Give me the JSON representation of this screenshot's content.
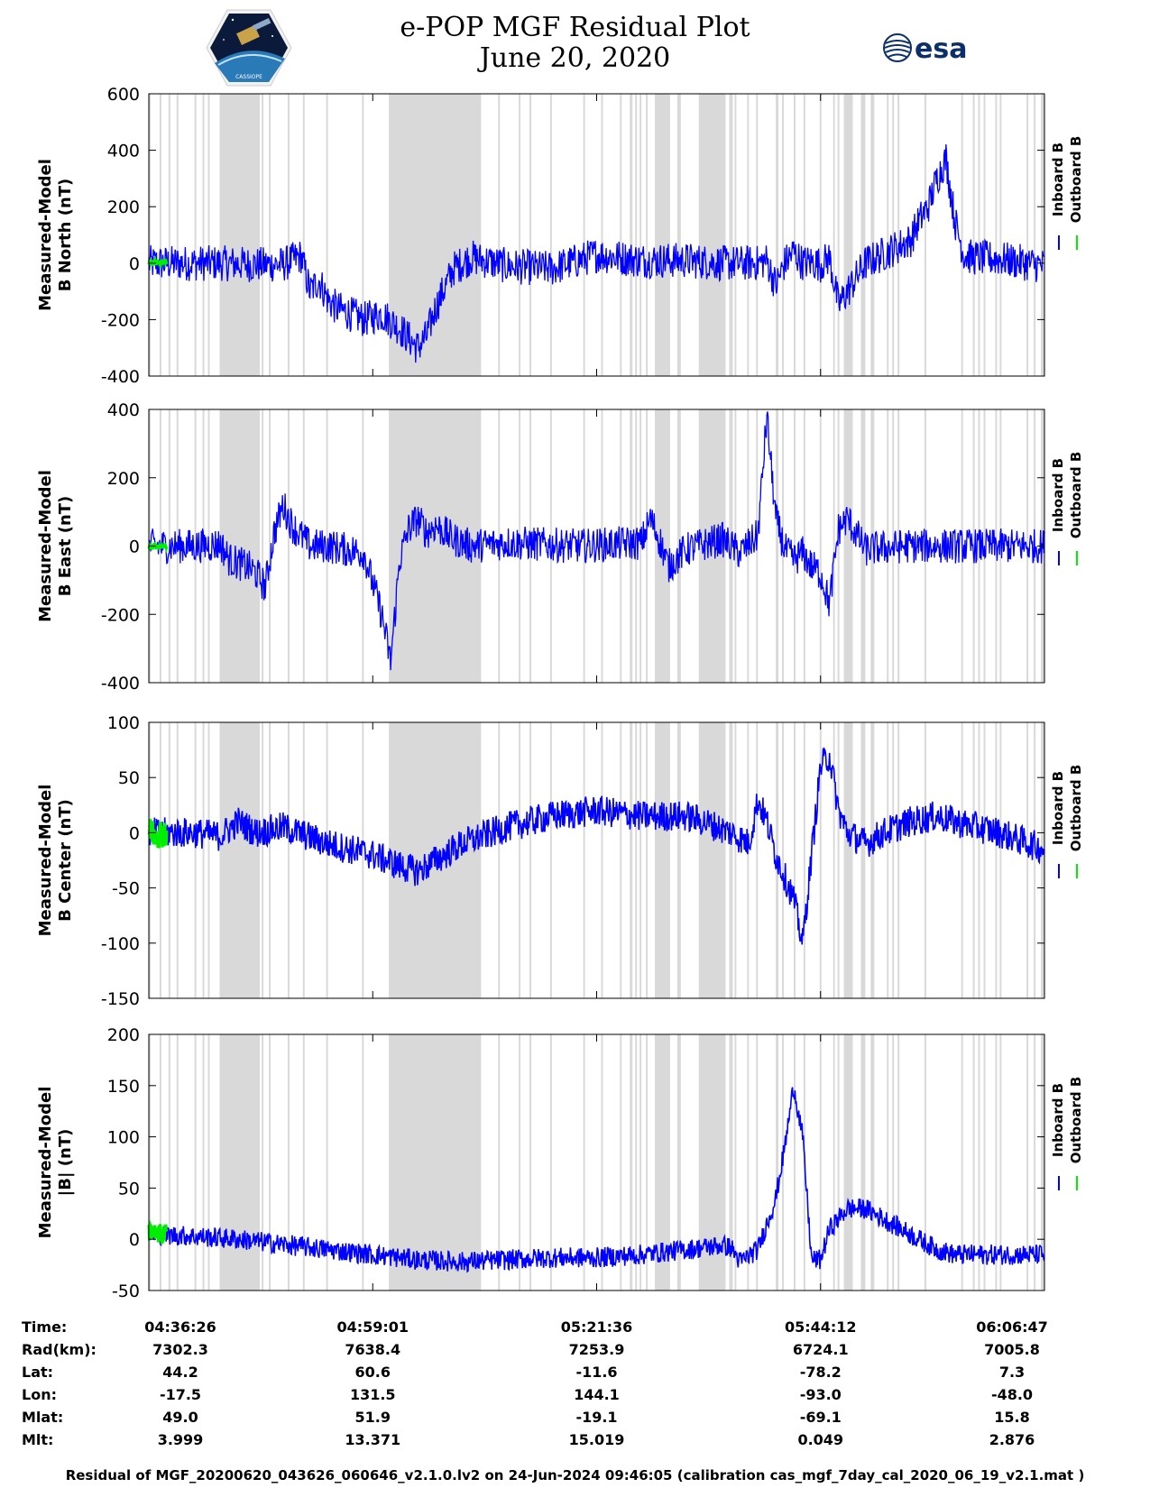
{
  "title": {
    "line1": "e-POP MGF Residual Plot",
    "line2": "June 20, 2020"
  },
  "logos": {
    "left": "cassiope-mission-logo",
    "right_text": "esa"
  },
  "chart_data": [
    {
      "type": "line",
      "panel": "north",
      "ylabel_line1": "Measured-Model",
      "ylabel_line2": "B North (nT)",
      "ylim": [
        -400,
        600
      ],
      "yticks": [
        -400,
        -200,
        0,
        200,
        400,
        600
      ],
      "legend": [
        "Inboard B",
        "Outboard B"
      ],
      "series": [
        {
          "name": "Inboard B",
          "color": "#0000ff",
          "x": [
            0,
            4,
            8,
            12,
            15,
            17,
            18,
            19,
            20,
            21,
            24,
            26,
            28,
            30,
            31,
            32,
            33,
            34,
            36,
            40,
            45,
            50,
            55,
            60,
            64,
            68,
            69,
            70,
            71,
            72,
            73,
            74,
            75,
            76,
            77,
            80,
            85,
            86,
            87,
            88,
            89,
            90,
            91,
            92,
            95,
            100
          ],
          "y": [
            0,
            0,
            0,
            -5,
            -5,
            25,
            -100,
            -60,
            -130,
            -160,
            -200,
            -180,
            -230,
            -300,
            -260,
            -160,
            -90,
            -20,
            20,
            -10,
            -20,
            30,
            10,
            10,
            0,
            0,
            10,
            -80,
            0,
            40,
            0,
            5,
            -5,
            20,
            -150,
            0,
            80,
            150,
            200,
            300,
            370,
            150,
            30,
            20,
            15,
            -10
          ]
        }
      ],
      "outboard": {
        "name": "Outboard B",
        "color": "#00ee00",
        "x": [
          0,
          2
        ],
        "y": [
          0,
          5
        ]
      }
    },
    {
      "type": "line",
      "panel": "east",
      "ylabel_line1": "Measured-Model",
      "ylabel_line2": "B East (nT)",
      "ylim": [
        -400,
        400
      ],
      "yticks": [
        -400,
        -200,
        0,
        200,
        400
      ],
      "legend": [
        "Inboard B",
        "Outboard B"
      ],
      "series": [
        {
          "name": "Inboard B",
          "color": "#0000ff",
          "x": [
            0,
            5,
            8,
            9,
            10,
            11,
            12,
            13,
            14,
            15,
            16,
            17,
            18,
            19,
            20,
            24,
            26,
            27,
            28,
            29,
            30,
            31,
            32,
            34,
            36,
            40,
            48,
            55,
            56,
            57,
            58,
            60,
            64,
            66,
            68,
            69,
            70,
            71,
            72,
            73,
            74,
            75,
            76,
            77,
            78,
            80,
            82,
            83,
            84,
            85,
            86,
            87,
            88,
            90,
            95,
            100
          ],
          "y": [
            0,
            0,
            5,
            -40,
            -50,
            -60,
            -80,
            -120,
            40,
            120,
            60,
            30,
            0,
            0,
            0,
            -20,
            -200,
            -340,
            -40,
            50,
            80,
            40,
            60,
            20,
            0,
            10,
            0,
            10,
            80,
            20,
            -60,
            -10,
            20,
            -20,
            30,
            380,
            80,
            -10,
            -40,
            -20,
            -60,
            -80,
            -170,
            50,
            80,
            -10,
            -5,
            -5,
            0,
            0,
            0,
            0,
            0,
            0,
            0,
            0
          ]
        }
      ],
      "outboard": {
        "name": "Outboard B",
        "color": "#00ee00",
        "x": [
          0,
          2
        ],
        "y": [
          0,
          0
        ]
      }
    },
    {
      "type": "line",
      "panel": "center",
      "ylabel_line1": "Measured-Model",
      "ylabel_line2": "B Center (nT)",
      "ylim": [
        -150,
        100
      ],
      "yticks": [
        -150,
        -100,
        -50,
        0,
        50,
        100
      ],
      "legend": [
        "Inboard B",
        "Outboard B"
      ],
      "series": [
        {
          "name": "Inboard B",
          "color": "#0000ff",
          "x": [
            0,
            5,
            8,
            10,
            12,
            15,
            20,
            25,
            28,
            30,
            32,
            35,
            40,
            45,
            50,
            55,
            58,
            60,
            62,
            65,
            67,
            68,
            69,
            70,
            72,
            73,
            74,
            75,
            76,
            77,
            78,
            80,
            82,
            85,
            88,
            90,
            95,
            100
          ],
          "y": [
            0,
            0,
            -3,
            10,
            0,
            5,
            -10,
            -20,
            -30,
            -35,
            -25,
            -10,
            5,
            15,
            20,
            15,
            15,
            15,
            10,
            0,
            -10,
            30,
            10,
            -20,
            -60,
            -100,
            -20,
            60,
            70,
            20,
            0,
            -10,
            0,
            10,
            15,
            10,
            0,
            -15
          ]
        }
      ],
      "noise_band": 14,
      "outboard": {
        "name": "Outboard B",
        "color": "#00ee00",
        "x": [
          0,
          2
        ],
        "y": [
          0,
          0
        ]
      }
    },
    {
      "type": "line",
      "panel": "magnitude",
      "ylabel_line1": "Measured-Model",
      "ylabel_line2": "|B| (nT)",
      "ylim": [
        -50,
        200
      ],
      "yticks": [
        -50,
        0,
        50,
        100,
        150,
        200
      ],
      "legend": [
        "Inboard B",
        "Outboard B"
      ],
      "series": [
        {
          "name": "Inboard B",
          "color": "#0000ff",
          "x": [
            0,
            5,
            10,
            15,
            20,
            25,
            30,
            35,
            40,
            45,
            50,
            55,
            60,
            62,
            64,
            65,
            66,
            68,
            70,
            71,
            72,
            73,
            74,
            75,
            76,
            78,
            80,
            82,
            85,
            88,
            90,
            95,
            100
          ],
          "y": [
            5,
            3,
            0,
            -5,
            -10,
            -15,
            -20,
            -22,
            -20,
            -18,
            -18,
            -15,
            -10,
            -8,
            -6,
            -8,
            -22,
            -10,
            40,
            90,
            150,
            100,
            -20,
            -20,
            10,
            30,
            30,
            20,
            5,
            -10,
            -15,
            -15,
            -15
          ]
        }
      ],
      "noise_band": 10,
      "outboard": {
        "name": "Outboard B",
        "color": "#00ee00",
        "x": [
          0,
          2
        ],
        "y": [
          5,
          5
        ]
      }
    }
  ],
  "shading_intervals": [
    [
      -0.1,
      0.2
    ],
    [
      1.2,
      1.4
    ],
    [
      2.2,
      2.4
    ],
    [
      3.1,
      3.3
    ],
    [
      5.1,
      5.3
    ],
    [
      6.0,
      6.2
    ],
    [
      6.6,
      6.8
    ],
    [
      7.9,
      12.4
    ],
    [
      12.6,
      12.8
    ],
    [
      13.4,
      13.6
    ],
    [
      15.5,
      15.7
    ],
    [
      17.2,
      17.4
    ],
    [
      19.8,
      20.0
    ],
    [
      23.8,
      24.0
    ],
    [
      26.8,
      37.1
    ],
    [
      39.0,
      39.2
    ],
    [
      41.3,
      41.5
    ],
    [
      42.5,
      42.7
    ],
    [
      44.8,
      45.0
    ],
    [
      48.5,
      48.7
    ],
    [
      50.5,
      50.7
    ],
    [
      52.6,
      52.8
    ],
    [
      53.7,
      54.0
    ],
    [
      54.3,
      54.5
    ],
    [
      54.8,
      55.0
    ],
    [
      55.5,
      55.7
    ],
    [
      56.5,
      58.2
    ],
    [
      59.0,
      59.4
    ],
    [
      61.4,
      64.4
    ],
    [
      64.8,
      65.2
    ],
    [
      65.4,
      65.6
    ],
    [
      66.8,
      67.0
    ],
    [
      67.8,
      68.0
    ],
    [
      70.0,
      70.3
    ],
    [
      70.7,
      70.9
    ],
    [
      72.0,
      72.2
    ],
    [
      73.1,
      73.3
    ],
    [
      74.9,
      75.1
    ],
    [
      76.4,
      76.6
    ],
    [
      76.9,
      77.1
    ],
    [
      77.6,
      78.6
    ],
    [
      79.5,
      80.0
    ],
    [
      80.6,
      81.0
    ],
    [
      82.4,
      82.6
    ],
    [
      83.0,
      83.2
    ],
    [
      83.6,
      83.8
    ],
    [
      86.6,
      86.8
    ],
    [
      90.7,
      90.9
    ],
    [
      92.0,
      92.2
    ],
    [
      92.6,
      92.8
    ],
    [
      93.2,
      93.4
    ],
    [
      94.5,
      94.7
    ],
    [
      95.0,
      95.2
    ],
    [
      98.0,
      98.2
    ],
    [
      98.8,
      99.0
    ],
    [
      99.6,
      99.8
    ],
    [
      99.8,
      100.1
    ]
  ],
  "ephemeris": {
    "labels": [
      "Time:",
      "Rad(km):",
      "Lat:",
      "Lon:",
      "Mlat:",
      "Mlt:"
    ],
    "columns": [
      {
        "pos": 0,
        "values": [
          "04:36:26",
          "7302.3",
          "44.2",
          "-17.5",
          "49.0",
          "3.999"
        ]
      },
      {
        "pos": 25,
        "values": [
          "04:59:01",
          "7638.4",
          "60.6",
          "131.5",
          "51.9",
          "13.371"
        ]
      },
      {
        "pos": 50,
        "values": [
          "05:21:36",
          "7253.9",
          "-11.6",
          "144.1",
          "-19.1",
          "15.019"
        ]
      },
      {
        "pos": 75,
        "values": [
          "05:44:12",
          "6724.1",
          "-78.2",
          "-93.0",
          "-69.1",
          "0.049"
        ]
      },
      {
        "pos": 100,
        "values": [
          "06:06:47",
          "7005.8",
          "7.3",
          "-48.0",
          "15.8",
          "2.876"
        ]
      }
    ]
  },
  "footer": "Residual of MGF_20200620_043626_060646_v2.1.0.lv2 on 24-Jun-2024 09:46:05 (calibration cas_mgf_7day_cal_2020_06_19_v2.1.mat )"
}
